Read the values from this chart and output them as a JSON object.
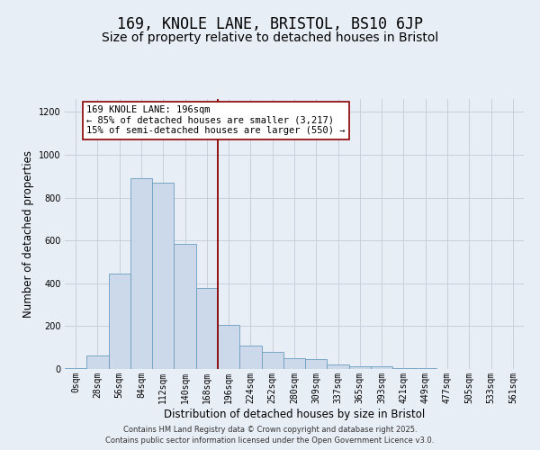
{
  "title_line1": "169, KNOLE LANE, BRISTOL, BS10 6JP",
  "title_line2": "Size of property relative to detached houses in Bristol",
  "xlabel": "Distribution of detached houses by size in Bristol",
  "ylabel": "Number of detached properties",
  "bar_labels": [
    "0sqm",
    "28sqm",
    "56sqm",
    "84sqm",
    "112sqm",
    "140sqm",
    "168sqm",
    "196sqm",
    "224sqm",
    "252sqm",
    "280sqm",
    "309sqm",
    "337sqm",
    "365sqm",
    "393sqm",
    "421sqm",
    "449sqm",
    "477sqm",
    "505sqm",
    "533sqm",
    "561sqm"
  ],
  "bar_values": [
    5,
    65,
    445,
    890,
    870,
    585,
    380,
    205,
    110,
    80,
    50,
    45,
    20,
    12,
    12,
    5,
    3,
    2,
    2,
    1,
    1
  ],
  "bar_color": "#ccd9ea",
  "bar_edgecolor": "#6b9dbf",
  "vline_x": 7,
  "vline_color": "#8b0000",
  "annotation_title": "169 KNOLE LANE: 196sqm",
  "annotation_line2": "← 85% of detached houses are smaller (3,217)",
  "annotation_line3": "15% of semi-detached houses are larger (550) →",
  "annotation_box_facecolor": "#ffffff",
  "annotation_box_edgecolor": "#8b0000",
  "ylim": [
    0,
    1260
  ],
  "yticks": [
    0,
    200,
    400,
    600,
    800,
    1000,
    1200
  ],
  "grid_color": "#c8d0dc",
  "background_color": "#e8eef5",
  "footer_line1": "Contains HM Land Registry data © Crown copyright and database right 2025.",
  "footer_line2": "Contains public sector information licensed under the Open Government Licence v3.0.",
  "title_fontsize": 12,
  "subtitle_fontsize": 10,
  "tick_fontsize": 7,
  "ylabel_fontsize": 8.5,
  "xlabel_fontsize": 8.5,
  "annotation_fontsize": 7.5,
  "footer_fontsize": 6
}
